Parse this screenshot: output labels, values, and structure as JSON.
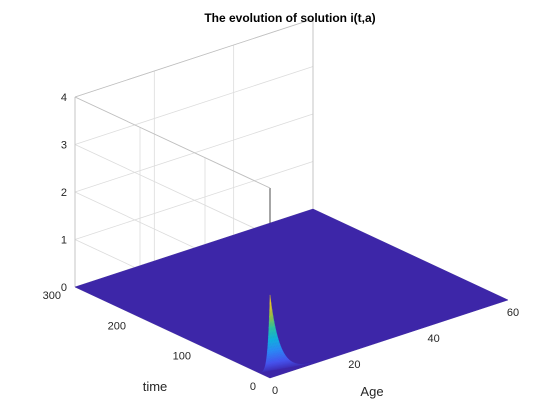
{
  "chart_data": {
    "type": "surface",
    "title": "The evolution of solution i(t,a)",
    "xlabel": "Age",
    "ylabel": "time",
    "zlabel": "",
    "xlim": [
      0,
      60
    ],
    "ylim": [
      0,
      300
    ],
    "zlim": [
      0,
      4
    ],
    "x_ticks": [
      "0",
      "20",
      "40",
      "60"
    ],
    "y_ticks": [
      "0",
      "100",
      "200",
      "300"
    ],
    "z_ticks": [
      "0",
      "1",
      "2",
      "3",
      "4"
    ],
    "grid": true,
    "colormap": "parula",
    "surface_color": "#3d26a8",
    "peak": {
      "age": 0,
      "time": 0,
      "value": 1.75
    },
    "decay_age_scale": 2.5,
    "decay_time_scale": 3.5,
    "background_value": 0
  }
}
